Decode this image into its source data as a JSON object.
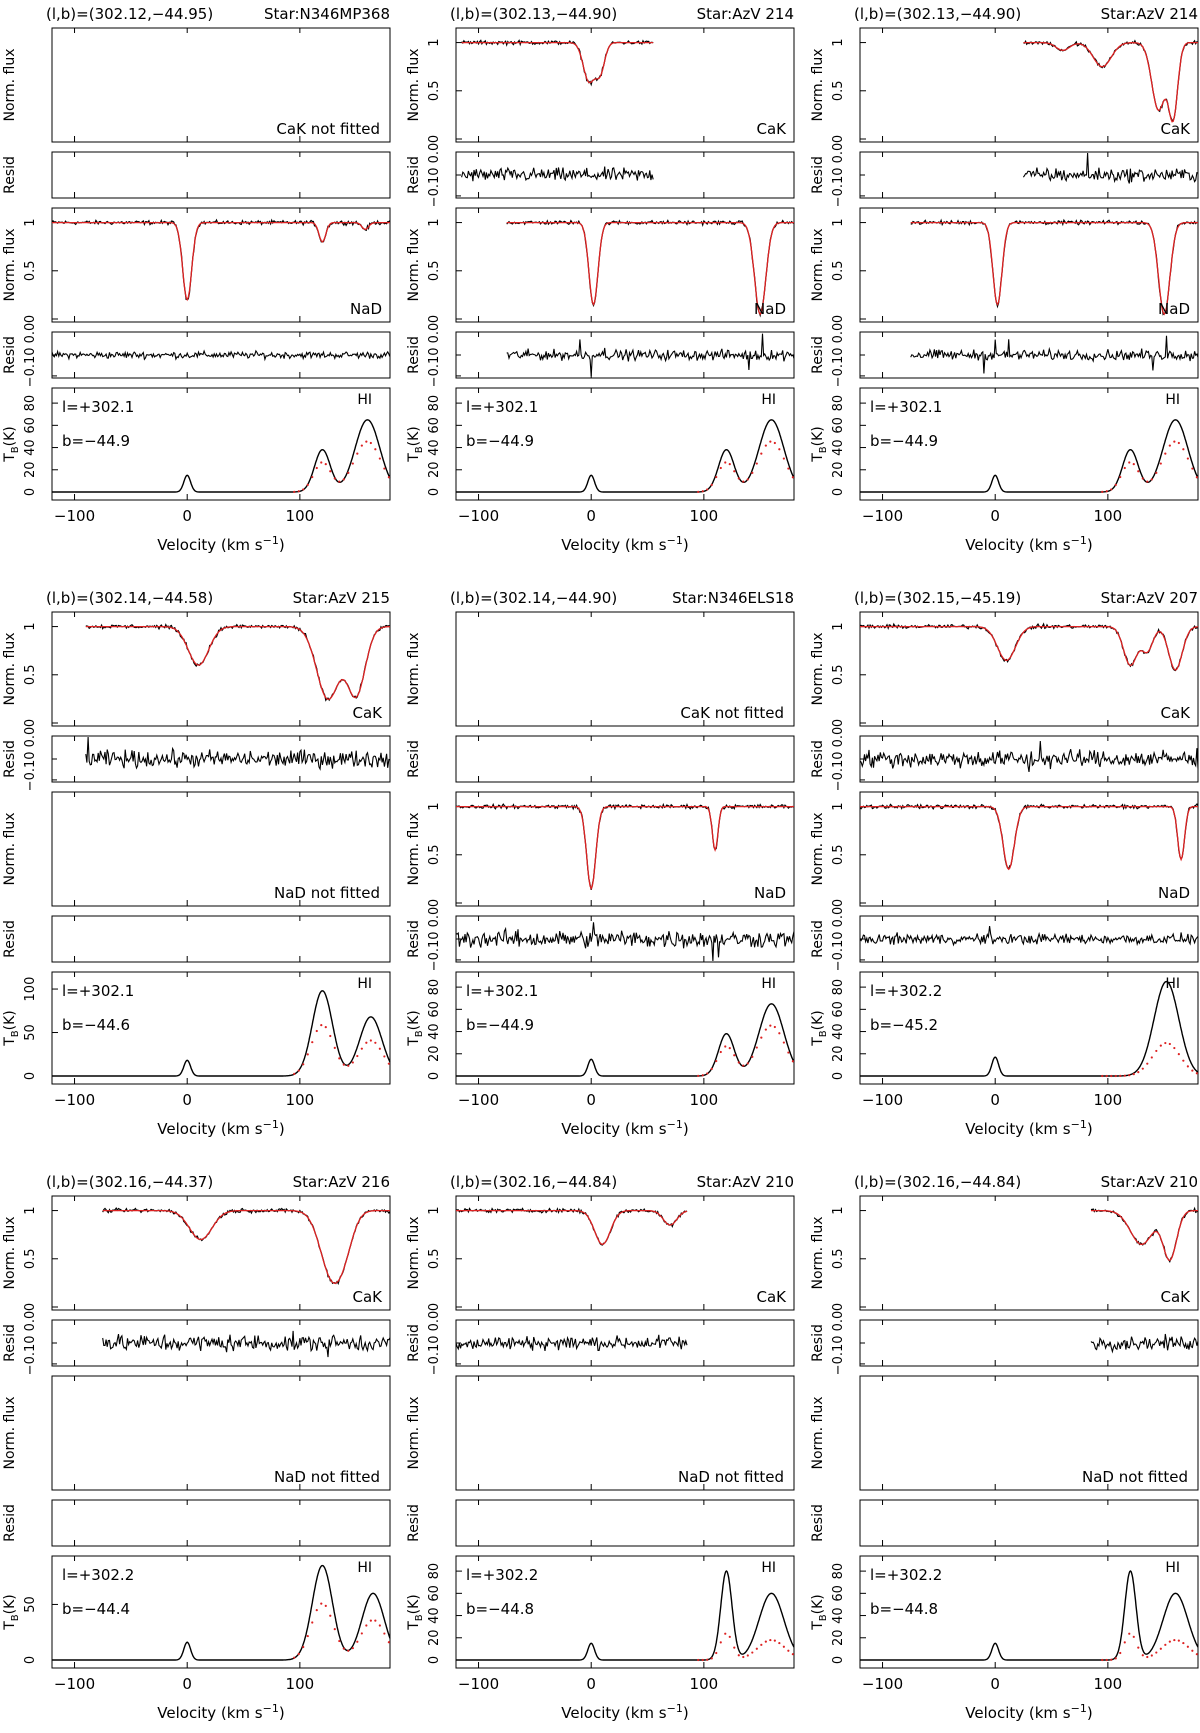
{
  "figure": {
    "y_axis_labels": {
      "flux": "Norm. flux",
      "resid": "Resid",
      "tb": "T_B(K)"
    },
    "x_axis_label": "Velocity (km s^-1)",
    "x_tick_labels": [
      "−100",
      "0",
      "100"
    ]
  },
  "chart_data": [
    {
      "type": "line",
      "header_left": "(l,b)=(302.12,−44.95)",
      "header_right": "Star:N346MP368",
      "xlim": [
        -120,
        180
      ],
      "x_ticks": [
        -100,
        0,
        100
      ],
      "cak": {
        "fitted": false,
        "label": "CaK not fitted"
      },
      "nad": {
        "fitted": true,
        "label": "NaD",
        "coverage": [
          -120,
          180
        ],
        "absorptions": [
          {
            "v": 0,
            "depth": 0.8,
            "width": 4
          },
          {
            "v": 120,
            "depth": 0.2,
            "width": 3
          },
          {
            "v": 158,
            "depth": 0.07,
            "width": 3
          }
        ],
        "resid_amp": 0.02,
        "resid_spikes": []
      },
      "hi": {
        "label": "HI",
        "l_text": "l=+302.1",
        "b_text": "b=−44.9",
        "tb_ticks": [
          0,
          20,
          40,
          60,
          80
        ],
        "tb_max": 90,
        "components": [
          {
            "v": 0,
            "peak": 15,
            "width": 3
          },
          {
            "v": 120,
            "peak": 38,
            "width": 7
          },
          {
            "v": 160,
            "peak": 65,
            "width": 11
          }
        ],
        "model_scale": 0.7
      }
    },
    {
      "type": "line",
      "header_left": "(l,b)=(302.13,−44.90)",
      "header_right": "Star:AzV 214",
      "xlim": [
        -120,
        180
      ],
      "x_ticks": [
        -100,
        0,
        100
      ],
      "cak": {
        "fitted": true,
        "label": "CaK",
        "coverage": [
          -115,
          55
        ],
        "absorptions": [
          {
            "v": -2,
            "depth": 0.4,
            "width": 5
          },
          {
            "v": 8,
            "depth": 0.3,
            "width": 4
          }
        ],
        "resid_amp": 0.04,
        "resid_spikes": []
      },
      "nad": {
        "fitted": true,
        "label": "NaD",
        "coverage": [
          -75,
          180
        ],
        "absorptions": [
          {
            "v": 2,
            "depth": 0.85,
            "width": 4
          },
          {
            "v": 150,
            "depth": 0.95,
            "width": 5
          }
        ],
        "resid_amp": 0.03,
        "resid_spikes": [
          {
            "v": -10,
            "amp": 0.35
          },
          {
            "v": 0,
            "amp": 0.4
          },
          {
            "v": 12,
            "amp": 0.3
          },
          {
            "v": 140,
            "amp": 0.45
          },
          {
            "v": 152,
            "amp": 0.5
          }
        ]
      },
      "hi": {
        "label": "HI",
        "l_text": "l=+302.1",
        "b_text": "b=−44.9",
        "tb_ticks": [
          0,
          20,
          40,
          60,
          80
        ],
        "tb_max": 90,
        "components": [
          {
            "v": 0,
            "peak": 15,
            "width": 3
          },
          {
            "v": 120,
            "peak": 38,
            "width": 7
          },
          {
            "v": 160,
            "peak": 65,
            "width": 11
          }
        ],
        "model_scale": 0.7
      }
    },
    {
      "type": "line",
      "header_left": "(l,b)=(302.13,−44.90)",
      "header_right": "Star:AzV 214",
      "xlim": [
        -120,
        180
      ],
      "x_ticks": [
        -100,
        0,
        100
      ],
      "cak": {
        "fitted": true,
        "label": "CaK",
        "coverage": [
          25,
          180
        ],
        "absorptions": [
          {
            "v": 60,
            "depth": 0.08,
            "width": 6
          },
          {
            "v": 95,
            "depth": 0.25,
            "width": 8
          },
          {
            "v": 145,
            "depth": 0.7,
            "width": 6
          },
          {
            "v": 158,
            "depth": 0.75,
            "width": 4
          }
        ],
        "resid_amp": 0.04,
        "resid_spikes": [
          {
            "v": 82,
            "amp": 0.6
          }
        ]
      },
      "nad": {
        "fitted": true,
        "label": "NaD",
        "coverage": [
          -75,
          180
        ],
        "absorptions": [
          {
            "v": 2,
            "depth": 0.85,
            "width": 4
          },
          {
            "v": 150,
            "depth": 0.95,
            "width": 5
          }
        ],
        "resid_amp": 0.03,
        "resid_spikes": [
          {
            "v": -10,
            "amp": 0.35
          },
          {
            "v": 0,
            "amp": 0.4
          },
          {
            "v": 12,
            "amp": 0.3
          },
          {
            "v": 140,
            "amp": 0.45
          },
          {
            "v": 152,
            "amp": 0.5
          }
        ]
      },
      "hi": {
        "label": "HI",
        "l_text": "l=+302.1",
        "b_text": "b=−44.9",
        "tb_ticks": [
          0,
          20,
          40,
          60,
          80
        ],
        "tb_max": 90,
        "components": [
          {
            "v": 0,
            "peak": 15,
            "width": 3
          },
          {
            "v": 120,
            "peak": 38,
            "width": 7
          },
          {
            "v": 160,
            "peak": 65,
            "width": 11
          }
        ],
        "model_scale": 0.7
      }
    },
    {
      "type": "line",
      "header_left": "(l,b)=(302.14,−44.58)",
      "header_right": "Star:AzV 215",
      "xlim": [
        -120,
        180
      ],
      "x_ticks": [
        -100,
        0,
        100
      ],
      "cak": {
        "fitted": true,
        "label": "CaK",
        "coverage": [
          -90,
          180
        ],
        "absorptions": [
          {
            "v": 10,
            "depth": 0.4,
            "width": 9
          },
          {
            "v": 125,
            "depth": 0.75,
            "width": 10
          },
          {
            "v": 150,
            "depth": 0.7,
            "width": 8
          }
        ],
        "resid_amp": 0.05,
        "resid_spikes": [
          {
            "v": -88,
            "amp": 0.6
          }
        ]
      },
      "nad": {
        "fitted": false,
        "label": "NaD not fitted"
      },
      "hi": {
        "label": "HI",
        "l_text": "l=+302.1",
        "b_text": "b=−44.6",
        "tb_ticks": [
          0,
          50,
          100
        ],
        "tb_max": 115,
        "components": [
          {
            "v": 0,
            "peak": 18,
            "width": 3
          },
          {
            "v": 120,
            "peak": 98,
            "width": 9
          },
          {
            "v": 163,
            "peak": 68,
            "width": 10
          }
        ],
        "model_scale": 0.6
      }
    },
    {
      "type": "line",
      "header_left": "(l,b)=(302.14,−44.90)",
      "header_right": "Star:N346ELS18",
      "xlim": [
        -120,
        180
      ],
      "x_ticks": [
        -100,
        0,
        100
      ],
      "cak": {
        "fitted": false,
        "label": "CaK not fitted"
      },
      "nad": {
        "fitted": true,
        "label": "NaD",
        "coverage": [
          -120,
          180
        ],
        "absorptions": [
          {
            "v": 0,
            "depth": 0.85,
            "width": 4
          },
          {
            "v": 110,
            "depth": 0.45,
            "width": 2.5
          }
        ],
        "resid_amp": 0.05,
        "resid_spikes": [
          {
            "v": 2,
            "amp": 0.3
          },
          {
            "v": 108,
            "amp": 0.6
          },
          {
            "v": 113,
            "amp": 0.4
          }
        ]
      },
      "hi": {
        "label": "HI",
        "l_text": "l=+302.1",
        "b_text": "b=−44.9",
        "tb_ticks": [
          0,
          20,
          40,
          60,
          80
        ],
        "tb_max": 90,
        "components": [
          {
            "v": 0,
            "peak": 15,
            "width": 3
          },
          {
            "v": 120,
            "peak": 38,
            "width": 7
          },
          {
            "v": 160,
            "peak": 65,
            "width": 11
          }
        ],
        "model_scale": 0.7
      }
    },
    {
      "type": "line",
      "header_left": "(l,b)=(302.15,−45.19)",
      "header_right": "Star:AzV 207",
      "xlim": [
        -120,
        180
      ],
      "x_ticks": [
        -100,
        0,
        100
      ],
      "cak": {
        "fitted": true,
        "label": "CaK",
        "coverage": [
          -120,
          180
        ],
        "absorptions": [
          {
            "v": 10,
            "depth": 0.35,
            "width": 8
          },
          {
            "v": 120,
            "depth": 0.4,
            "width": 6
          },
          {
            "v": 135,
            "depth": 0.25,
            "width": 5
          },
          {
            "v": 160,
            "depth": 0.45,
            "width": 6
          }
        ],
        "resid_amp": 0.05,
        "resid_spikes": [
          {
            "v": 30,
            "amp": 0.5
          },
          {
            "v": 40,
            "amp": 0.45
          }
        ]
      },
      "nad": {
        "fitted": true,
        "label": "NaD",
        "coverage": [
          -120,
          180
        ],
        "absorptions": [
          {
            "v": 12,
            "depth": 0.65,
            "width": 5
          },
          {
            "v": 165,
            "depth": 0.55,
            "width": 3
          }
        ],
        "resid_amp": 0.03,
        "resid_spikes": [
          {
            "v": -5,
            "amp": 0.3
          }
        ]
      },
      "hi": {
        "label": "HI",
        "l_text": "l=+302.2",
        "b_text": "b=−45.2",
        "tb_ticks": [
          0,
          20,
          40,
          60,
          80
        ],
        "tb_max": 90,
        "components": [
          {
            "v": 0,
            "peak": 17,
            "width": 3
          },
          {
            "v": 152,
            "peak": 85,
            "width": 11
          }
        ],
        "model_scale": 0.35
      }
    },
    {
      "type": "line",
      "header_left": "(l,b)=(302.16,−44.37)",
      "header_right": "Star:AzV 216",
      "xlim": [
        -120,
        180
      ],
      "x_ticks": [
        -100,
        0,
        100
      ],
      "cak": {
        "fitted": true,
        "label": "CaK",
        "coverage": [
          -75,
          180
        ],
        "absorptions": [
          {
            "v": 12,
            "depth": 0.3,
            "width": 10
          },
          {
            "v": 128,
            "depth": 0.65,
            "width": 10
          },
          {
            "v": 140,
            "depth": 0.25,
            "width": 8
          }
        ],
        "resid_amp": 0.05,
        "resid_spikes": [
          {
            "v": 125,
            "amp": 0.3
          }
        ]
      },
      "nad": {
        "fitted": false,
        "label": "NaD not fitted"
      },
      "hi": {
        "label": "HI",
        "l_text": "l=+302.2",
        "b_text": "b=−44.4",
        "tb_ticks": [
          0,
          50
        ],
        "tb_max": 90,
        "components": [
          {
            "v": 0,
            "peak": 16,
            "width": 3
          },
          {
            "v": 120,
            "peak": 85,
            "width": 9
          },
          {
            "v": 165,
            "peak": 60,
            "width": 10
          }
        ],
        "model_scale": 0.6
      }
    },
    {
      "type": "line",
      "header_left": "(l,b)=(302.16,−44.84)",
      "header_right": "Star:AzV 210",
      "xlim": [
        -120,
        180
      ],
      "x_ticks": [
        -100,
        0,
        100
      ],
      "cak": {
        "fitted": true,
        "label": "CaK",
        "coverage": [
          -120,
          85
        ],
        "absorptions": [
          {
            "v": 10,
            "depth": 0.35,
            "width": 7
          },
          {
            "v": 70,
            "depth": 0.15,
            "width": 6
          }
        ],
        "resid_amp": 0.04,
        "resid_spikes": []
      },
      "nad": {
        "fitted": false,
        "label": "NaD not fitted"
      },
      "hi": {
        "label": "HI",
        "l_text": "l=+302.2",
        "b_text": "b=−44.8",
        "tb_ticks": [
          0,
          20,
          40,
          60,
          80
        ],
        "tb_max": 90,
        "components": [
          {
            "v": 0,
            "peak": 15,
            "width": 3
          },
          {
            "v": 120,
            "peak": 80,
            "width": 5
          },
          {
            "v": 160,
            "peak": 60,
            "width": 11
          }
        ],
        "model_scale": 0.3
      }
    },
    {
      "type": "line",
      "header_left": "(l,b)=(302.16,−44.84)",
      "header_right": "Star:AzV 210",
      "xlim": [
        -120,
        180
      ],
      "x_ticks": [
        -100,
        0,
        100
      ],
      "cak": {
        "fitted": true,
        "label": "CaK",
        "coverage": [
          85,
          180
        ],
        "absorptions": [
          {
            "v": 130,
            "depth": 0.35,
            "width": 10
          },
          {
            "v": 155,
            "depth": 0.5,
            "width": 6
          }
        ],
        "resid_amp": 0.04,
        "resid_spikes": []
      },
      "nad": {
        "fitted": false,
        "label": "NaD not fitted"
      },
      "hi": {
        "label": "HI",
        "l_text": "l=+302.2",
        "b_text": "b=−44.8",
        "tb_ticks": [
          0,
          20,
          40,
          60,
          80
        ],
        "tb_max": 90,
        "components": [
          {
            "v": 0,
            "peak": 15,
            "width": 3
          },
          {
            "v": 120,
            "peak": 80,
            "width": 5
          },
          {
            "v": 160,
            "peak": 60,
            "width": 11
          }
        ],
        "model_scale": 0.3
      }
    }
  ]
}
